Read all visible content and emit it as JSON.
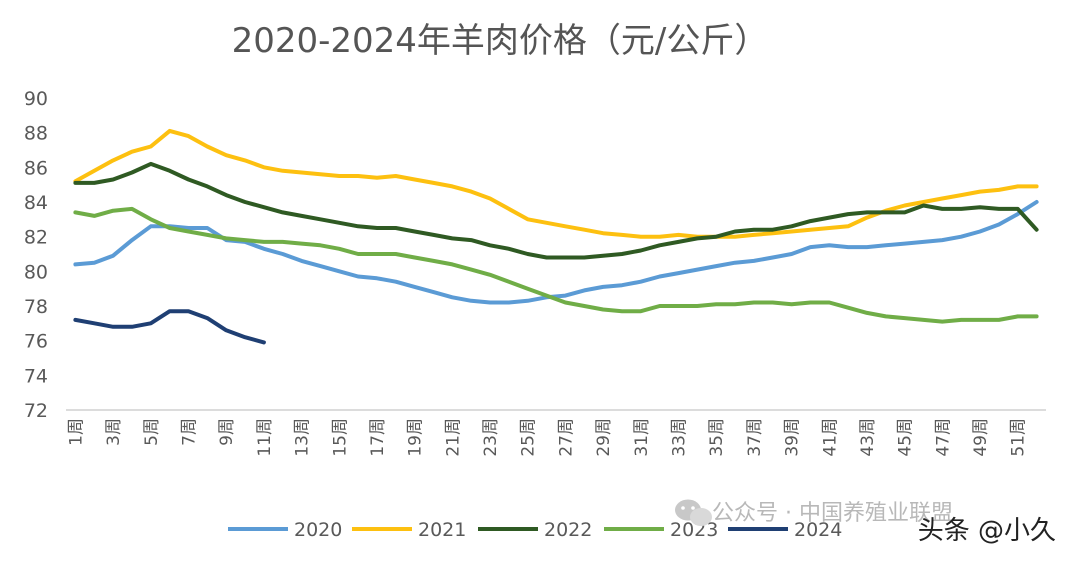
{
  "chart_data": {
    "type": "line",
    "title": "2020-2024年羊肉价格（元/公斤）",
    "ylim": [
      72,
      90
    ],
    "y_ticks": [
      90,
      88,
      86,
      84,
      82,
      80,
      78,
      76,
      74,
      72
    ],
    "x_tick_labels": [
      "1周",
      "3周",
      "5周",
      "7周",
      "9周",
      "11周",
      "13周",
      "15周",
      "17周",
      "19周",
      "21周",
      "23周",
      "25周",
      "27周",
      "29周",
      "31周",
      "33周",
      "35周",
      "37周",
      "39周",
      "41周",
      "43周",
      "45周",
      "47周",
      "49周",
      "51周"
    ],
    "x_tick_weeks": [
      1,
      3,
      5,
      7,
      9,
      11,
      13,
      15,
      17,
      19,
      21,
      23,
      25,
      27,
      29,
      31,
      33,
      35,
      37,
      39,
      41,
      43,
      45,
      47,
      49,
      51
    ],
    "legend_position": "bottom",
    "series": [
      {
        "name": "2020",
        "color": "#5b9bd5",
        "weeks": [
          1,
          2,
          3,
          4,
          5,
          6,
          7,
          8,
          9,
          10,
          11,
          12,
          13,
          14,
          15,
          16,
          17,
          18,
          19,
          20,
          21,
          22,
          23,
          24,
          25,
          26,
          27,
          28,
          29,
          30,
          31,
          32,
          33,
          34,
          35,
          36,
          37,
          38,
          39,
          40,
          41,
          42,
          43,
          44,
          45,
          46,
          47,
          48,
          49,
          50,
          51,
          52
        ],
        "values": [
          80.4,
          80.5,
          80.9,
          81.8,
          82.6,
          82.6,
          82.5,
          82.5,
          81.8,
          81.7,
          81.3,
          81.0,
          80.6,
          80.3,
          80.0,
          79.7,
          79.6,
          79.4,
          79.1,
          78.8,
          78.5,
          78.3,
          78.2,
          78.2,
          78.3,
          78.5,
          78.6,
          78.9,
          79.1,
          79.2,
          79.4,
          79.7,
          79.9,
          80.1,
          80.3,
          80.5,
          80.6,
          80.8,
          81.0,
          81.4,
          81.5,
          81.4,
          81.4,
          81.5,
          81.6,
          81.7,
          81.8,
          82.0,
          82.3,
          82.7,
          83.3,
          84.0
        ]
      },
      {
        "name": "2021",
        "color": "#fdc010",
        "weeks": [
          1,
          2,
          3,
          4,
          5,
          6,
          7,
          8,
          9,
          10,
          11,
          12,
          13,
          14,
          15,
          16,
          17,
          18,
          19,
          20,
          21,
          22,
          23,
          24,
          25,
          26,
          27,
          28,
          29,
          30,
          31,
          32,
          33,
          34,
          35,
          36,
          37,
          38,
          39,
          40,
          41,
          42,
          43,
          44,
          45,
          46,
          47,
          48,
          49,
          50,
          51,
          52
        ],
        "values": [
          85.2,
          85.8,
          86.4,
          86.9,
          87.2,
          88.1,
          87.8,
          87.2,
          86.7,
          86.4,
          86.0,
          85.8,
          85.7,
          85.6,
          85.5,
          85.5,
          85.4,
          85.5,
          85.3,
          85.1,
          84.9,
          84.6,
          84.2,
          83.6,
          83.0,
          82.8,
          82.6,
          82.4,
          82.2,
          82.1,
          82.0,
          82.0,
          82.1,
          82.0,
          82.0,
          82.0,
          82.1,
          82.2,
          82.3,
          82.4,
          82.5,
          82.6,
          83.1,
          83.5,
          83.8,
          84.0,
          84.2,
          84.4,
          84.6,
          84.7,
          84.9,
          84.9
        ]
      },
      {
        "name": "2022",
        "color": "#2f5a23",
        "weeks": [
          1,
          2,
          3,
          4,
          5,
          6,
          7,
          8,
          9,
          10,
          11,
          12,
          13,
          14,
          15,
          16,
          17,
          18,
          19,
          20,
          21,
          22,
          23,
          24,
          25,
          26,
          27,
          28,
          29,
          30,
          31,
          32,
          33,
          34,
          35,
          36,
          37,
          38,
          39,
          40,
          41,
          42,
          43,
          44,
          45,
          46,
          47,
          48,
          49,
          50,
          51,
          52
        ],
        "values": [
          85.1,
          85.1,
          85.3,
          85.7,
          86.2,
          85.8,
          85.3,
          84.9,
          84.4,
          84.0,
          83.7,
          83.4,
          83.2,
          83.0,
          82.8,
          82.6,
          82.5,
          82.5,
          82.3,
          82.1,
          81.9,
          81.8,
          81.5,
          81.3,
          81.0,
          80.8,
          80.8,
          80.8,
          80.9,
          81.0,
          81.2,
          81.5,
          81.7,
          81.9,
          82.0,
          82.3,
          82.4,
          82.4,
          82.6,
          82.9,
          83.1,
          83.3,
          83.4,
          83.4,
          83.4,
          83.8,
          83.6,
          83.6,
          83.7,
          83.6,
          83.6,
          82.4
        ]
      },
      {
        "name": "2023",
        "color": "#70ad47",
        "weeks": [
          1,
          2,
          3,
          4,
          5,
          6,
          7,
          8,
          9,
          10,
          11,
          12,
          13,
          14,
          15,
          16,
          17,
          18,
          19,
          20,
          21,
          22,
          23,
          24,
          25,
          26,
          27,
          28,
          29,
          30,
          31,
          32,
          33,
          34,
          35,
          36,
          37,
          38,
          39,
          40,
          41,
          42,
          43,
          44,
          45,
          46,
          47,
          48,
          49,
          50,
          51,
          52
        ],
        "values": [
          83.4,
          83.2,
          83.5,
          83.6,
          83.0,
          82.5,
          82.3,
          82.1,
          81.9,
          81.8,
          81.7,
          81.7,
          81.6,
          81.5,
          81.3,
          81.0,
          81.0,
          81.0,
          80.8,
          80.6,
          80.4,
          80.1,
          79.8,
          79.4,
          79.0,
          78.6,
          78.2,
          78.0,
          77.8,
          77.7,
          77.7,
          78.0,
          78.0,
          78.0,
          78.1,
          78.1,
          78.2,
          78.2,
          78.1,
          78.2,
          78.2,
          77.9,
          77.6,
          77.4,
          77.3,
          77.2,
          77.1,
          77.2,
          77.2,
          77.2,
          77.4,
          77.4
        ]
      },
      {
        "name": "2024",
        "color": "#1f3f73",
        "weeks": [
          1,
          2,
          3,
          4,
          5,
          6,
          7,
          8,
          9,
          10,
          11
        ],
        "values": [
          77.2,
          77.0,
          76.8,
          76.8,
          77.0,
          77.7,
          77.7,
          77.3,
          76.6,
          76.2,
          75.9
        ]
      }
    ]
  },
  "watermarks": {
    "wechat": "公众号 · 中国养殖业联盟",
    "toutiao": "头条 @小久"
  }
}
